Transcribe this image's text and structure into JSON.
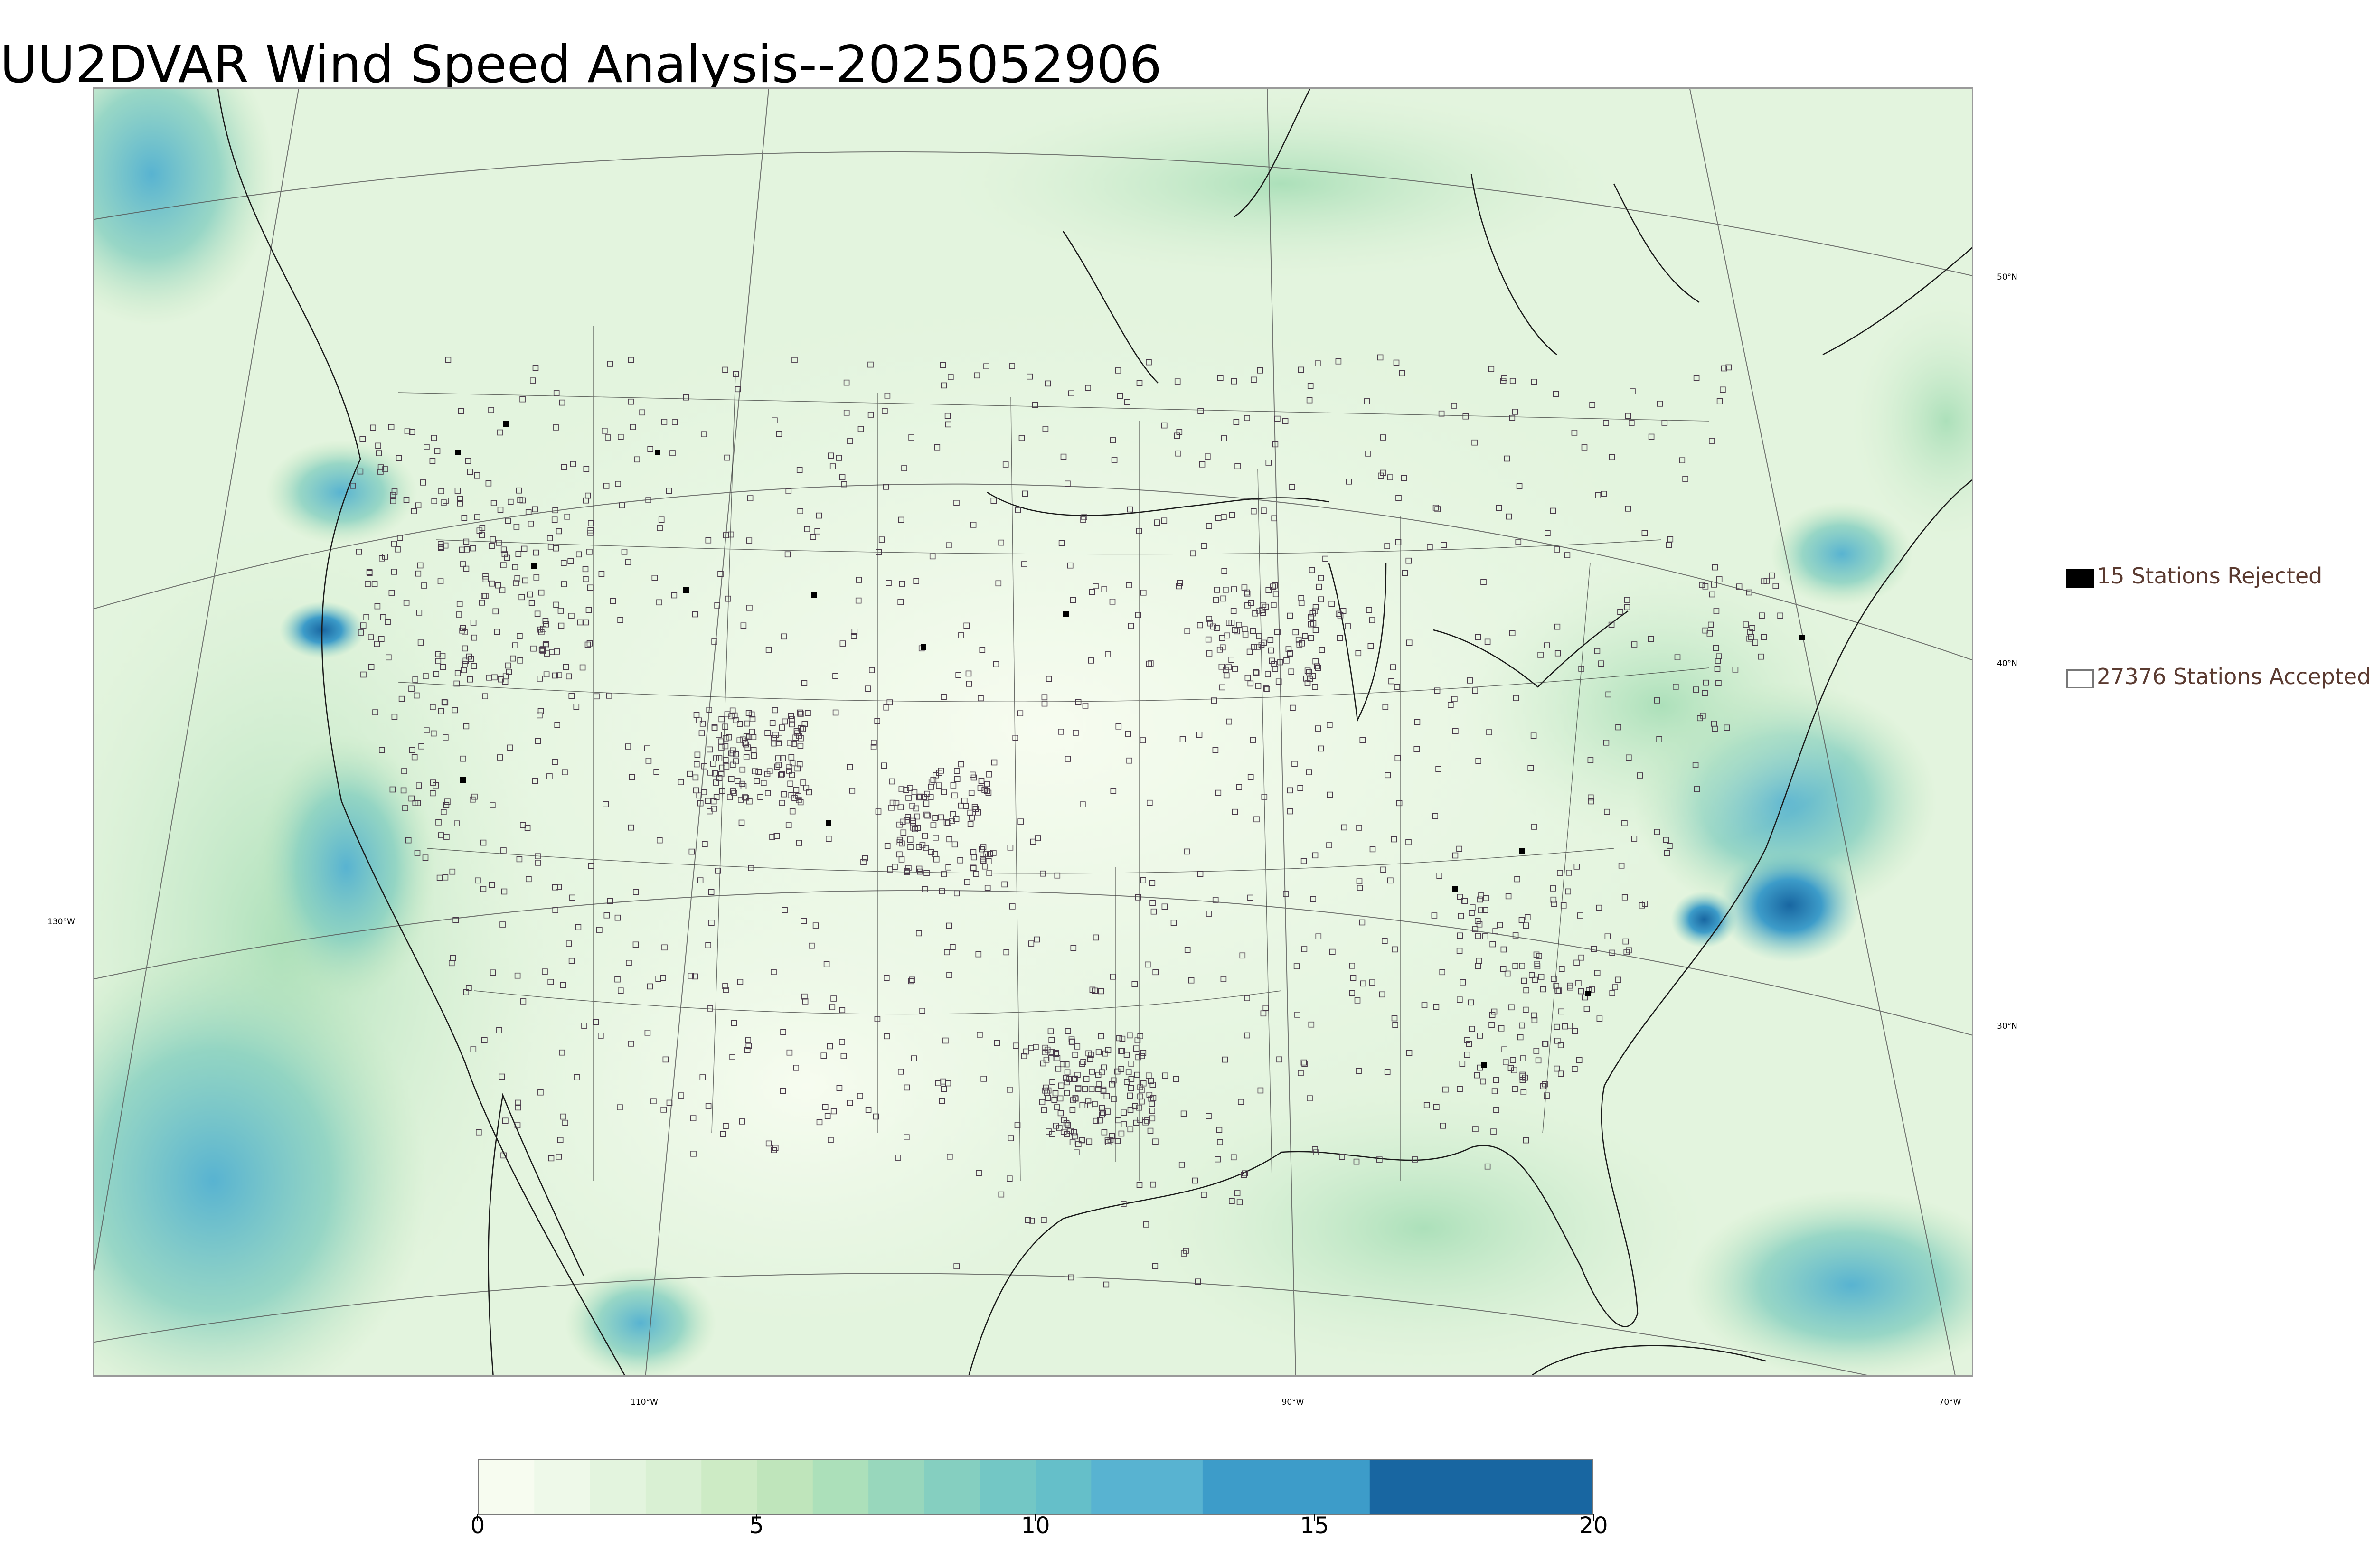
{
  "title": "UU2DVAR Wind Speed Analysis--2025052906",
  "map": {
    "projection": "lambert-conformal",
    "field": "wind speed",
    "colormap": "GnBu",
    "station_marker_style": "open-square",
    "latitude_labels": [
      "50°N",
      "40°N",
      "30°N"
    ],
    "longitude_labels": [
      "130°W",
      "110°W",
      "90°W",
      "70°W"
    ]
  },
  "legend": {
    "items": [
      {
        "label": "15 Stations Rejected",
        "swatch_color": "#000000",
        "filled": true
      },
      {
        "label": "27376 Stations Accepted",
        "swatch_color": "#ffffff",
        "filled": false
      }
    ]
  },
  "colorbar": {
    "min": 0,
    "max": 20,
    "tick_labels": [
      "0",
      "5",
      "10",
      "15",
      "20"
    ],
    "bins": [
      {
        "from": 0,
        "to": 1,
        "color": "#f7fcf0"
      },
      {
        "from": 1,
        "to": 2,
        "color": "#eef9e9"
      },
      {
        "from": 2,
        "to": 3,
        "color": "#e3f4de"
      },
      {
        "from": 3,
        "to": 4,
        "color": "#d9f0d3"
      },
      {
        "from": 4,
        "to": 5,
        "color": "#cdebc5"
      },
      {
        "from": 5,
        "to": 6,
        "color": "#bfe5bb"
      },
      {
        "from": 6,
        "to": 7,
        "color": "#ace0ba"
      },
      {
        "from": 7,
        "to": 8,
        "color": "#98d7bc"
      },
      {
        "from": 8,
        "to": 9,
        "color": "#85cfc0"
      },
      {
        "from": 9,
        "to": 10,
        "color": "#73c7c5"
      },
      {
        "from": 10,
        "to": 11,
        "color": "#65bfc9"
      },
      {
        "from": 11,
        "to": 13,
        "color": "#58b3d1"
      },
      {
        "from": 13,
        "to": 16,
        "color": "#3d9cc9"
      },
      {
        "from": 16,
        "to": 20,
        "color": "#1866a1"
      }
    ]
  },
  "chart_data": {
    "type": "heatmap",
    "title": "UU2DVAR Wind Speed Analysis--2025052906",
    "colorbar_range": [
      0,
      20
    ],
    "colorbar_ticks": [
      0,
      5,
      10,
      15,
      20
    ],
    "stations_rejected": 15,
    "stations_accepted": 27376,
    "legend": [
      "15 Stations Rejected",
      "27376 Stations Accepted"
    ]
  }
}
